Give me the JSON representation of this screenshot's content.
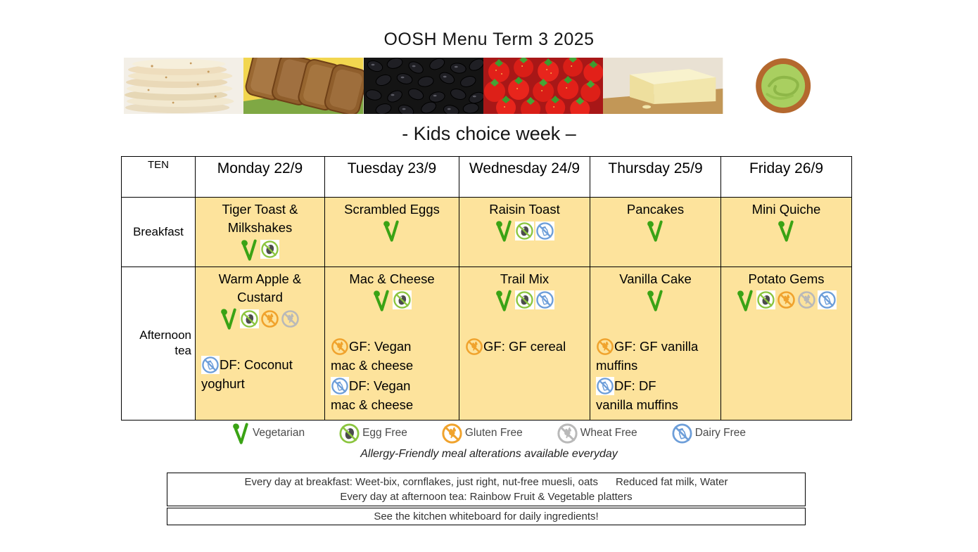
{
  "title": "OOSH Menu Term 3 2025",
  "subtitle": "- Kids choice week –",
  "banner": {
    "images": [
      "tortilla-stack",
      "sliced-bread",
      "black-beans",
      "strawberries",
      "cheese-block",
      "guacamole-bowl"
    ]
  },
  "table": {
    "corner_label": "TEN",
    "days": [
      "Monday 22/9",
      "Tuesday 23/9",
      "Wednesday 24/9",
      "Thursday 25/9",
      "Friday 26/9"
    ],
    "rows": [
      {
        "label": "Breakfast",
        "cells": [
          {
            "name": "Tiger Toast & Milkshakes",
            "icons": [
              "vegetarian",
              "egg-free"
            ],
            "alterations": []
          },
          {
            "name": "Scrambled Eggs",
            "icons": [
              "vegetarian"
            ],
            "alterations": []
          },
          {
            "name": "Raisin Toast",
            "icons": [
              "vegetarian",
              "egg-free",
              "dairy-free"
            ],
            "alterations": []
          },
          {
            "name": "Pancakes",
            "icons": [
              "vegetarian"
            ],
            "alterations": []
          },
          {
            "name": "Mini Quiche",
            "icons": [
              "vegetarian"
            ],
            "alterations": []
          }
        ]
      },
      {
        "label": "Afternoon tea",
        "cells": [
          {
            "name": "Warm Apple & Custard",
            "icons": [
              "vegetarian",
              "egg-free",
              "gluten-free",
              "wheat-free"
            ],
            "alterations": [
              {
                "icon": "dairy-free",
                "text": "DF: Coconut\nyoghurt"
              }
            ]
          },
          {
            "name": "Mac & Cheese",
            "icons": [
              "vegetarian",
              "egg-free"
            ],
            "alterations": [
              {
                "icon": "gluten-free",
                "text": "GF: Vegan\nmac & cheese"
              },
              {
                "icon": "dairy-free",
                "text": "DF: Vegan\nmac & cheese"
              }
            ]
          },
          {
            "name": "Trail Mix",
            "icons": [
              "vegetarian",
              "egg-free",
              "dairy-free"
            ],
            "alterations": [
              {
                "icon": "gluten-free",
                "text": "GF: GF cereal"
              }
            ]
          },
          {
            "name": "Vanilla Cake",
            "icons": [
              "vegetarian"
            ],
            "alterations": [
              {
                "icon": "gluten-free",
                "text": "GF: GF vanilla\nmuffins"
              },
              {
                "icon": "dairy-free",
                "text": "DF: DF\nvanilla muffins"
              }
            ]
          },
          {
            "name": "Potato Gems",
            "icons": [
              "vegetarian",
              "egg-free",
              "gluten-free",
              "wheat-free",
              "dairy-free"
            ],
            "alterations": []
          }
        ]
      }
    ]
  },
  "legend": {
    "items": [
      {
        "icon": "vegetarian",
        "label": "Vegetarian"
      },
      {
        "icon": "egg-free",
        "label": "Egg Free"
      },
      {
        "icon": "gluten-free",
        "label": "Gluten Free"
      },
      {
        "icon": "wheat-free",
        "label": "Wheat Free"
      },
      {
        "icon": "dairy-free",
        "label": "Dairy Free"
      }
    ],
    "note": "Allergy-Friendly meal alterations available everyday"
  },
  "footer": {
    "box1_line1": "Every day at breakfast: Weet-bix, cornflakes, just right, nut-free muesli, oats      Reduced fat milk, Water",
    "box1_line2": "Every day at afternoon tea: Rainbow Fruit & Vegetable platters",
    "box2": "See the kitchen whiteboard for daily ingredients!"
  },
  "colors": {
    "cell_fill": "#fde39c",
    "vegetarian_green": "#3aa315",
    "egg_free_green": "#8bc53f",
    "gluten_free_orange": "#f0a32d",
    "wheat_free_gray": "#b9b9b9",
    "dairy_free_blue": "#6d9ed9"
  }
}
